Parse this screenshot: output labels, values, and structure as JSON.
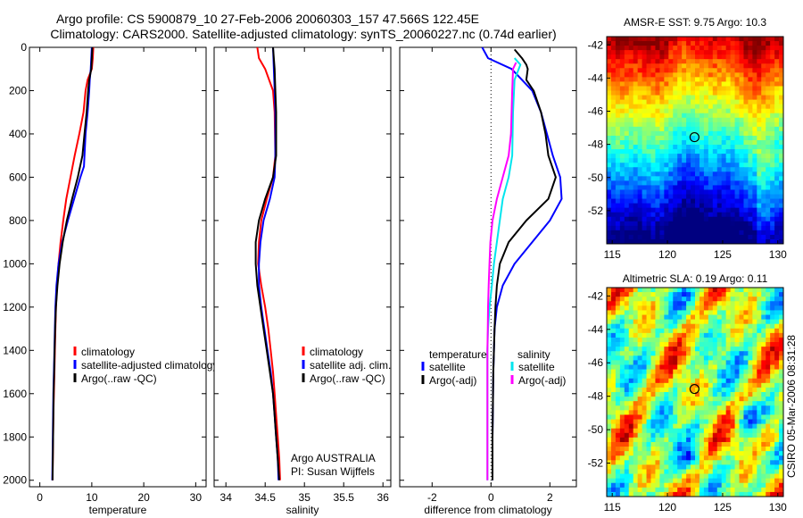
{
  "header": {
    "line1": "Argo profile: CS 5900879_10 27-Feb-2006 20060303_157 47.566S 122.45E",
    "line2": "Climatology: CARS2000. Satellite-adjusted climatology: synTS_20060227.nc (0.74d earlier)"
  },
  "side_stamp": "CSIRO 05-Mar-2006 08:31:28",
  "colors": {
    "red": "#ff0000",
    "blue": "#0000ff",
    "black": "#000000",
    "cyan": "#00e5ee",
    "magenta": "#ff00ff"
  },
  "chart_data": [
    {
      "type": "line",
      "xlabel": "temperature",
      "ylim": [
        2030,
        0
      ],
      "xlim": [
        -2,
        32
      ],
      "xticks": [
        0,
        10,
        20,
        30
      ],
      "yticks": [
        0,
        200,
        400,
        600,
        800,
        1000,
        1200,
        1400,
        1600,
        1800,
        2000
      ],
      "legend": [
        "climatology",
        "satellite-adjusted climatology",
        "Argo(..raw -QC)"
      ],
      "legend_position": "lower-middle",
      "series": [
        {
          "name": "climatology",
          "color": "#ff0000",
          "points": [
            [
              10.3,
              0
            ],
            [
              10.2,
              50
            ],
            [
              10.0,
              100
            ],
            [
              9.2,
              150
            ],
            [
              8.8,
              200
            ],
            [
              8.4,
              300
            ],
            [
              7.6,
              400
            ],
            [
              6.7,
              500
            ],
            [
              5.9,
              600
            ],
            [
              5.1,
              700
            ],
            [
              4.5,
              800
            ],
            [
              4.0,
              900
            ],
            [
              3.6,
              1000
            ],
            [
              3.3,
              1100
            ],
            [
              3.1,
              1200
            ],
            [
              3.0,
              1300
            ],
            [
              2.9,
              1400
            ],
            [
              2.8,
              1500
            ],
            [
              2.7,
              1600
            ],
            [
              2.6,
              1700
            ],
            [
              2.55,
              1800
            ],
            [
              2.5,
              1900
            ],
            [
              2.45,
              2000
            ]
          ]
        },
        {
          "name": "satellite-adjusted climatology",
          "color": "#0000ff",
          "points": [
            [
              10.0,
              0
            ],
            [
              9.9,
              50
            ],
            [
              9.8,
              100
            ],
            [
              9.6,
              150
            ],
            [
              9.5,
              200
            ],
            [
              9.2,
              300
            ],
            [
              8.8,
              400
            ],
            [
              8.6,
              500
            ],
            [
              8.5,
              550
            ],
            [
              7.8,
              600
            ],
            [
              6.6,
              700
            ],
            [
              5.4,
              800
            ],
            [
              4.3,
              900
            ],
            [
              3.6,
              1000
            ],
            [
              3.2,
              1100
            ],
            [
              3.0,
              1200
            ],
            [
              2.9,
              1300
            ],
            [
              2.8,
              1400
            ],
            [
              2.7,
              1500
            ],
            [
              2.6,
              1600
            ],
            [
              2.55,
              1700
            ],
            [
              2.5,
              1800
            ],
            [
              2.45,
              1900
            ],
            [
              2.4,
              2000
            ]
          ]
        },
        {
          "name": "Argo(..raw -QC)",
          "color": "#000000",
          "points": [
            [
              10.1,
              0
            ],
            [
              10.0,
              50
            ],
            [
              9.9,
              100
            ],
            [
              9.5,
              150
            ],
            [
              9.3,
              200
            ],
            [
              9.0,
              300
            ],
            [
              8.6,
              400
            ],
            [
              8.2,
              500
            ],
            [
              7.3,
              600
            ],
            [
              6.2,
              700
            ],
            [
              5.2,
              800
            ],
            [
              4.4,
              900
            ],
            [
              3.8,
              1000
            ],
            [
              3.4,
              1100
            ],
            [
              3.1,
              1200
            ],
            [
              2.95,
              1300
            ],
            [
              2.85,
              1400
            ],
            [
              2.75,
              1500
            ],
            [
              2.65,
              1600
            ],
            [
              2.6,
              1700
            ],
            [
              2.55,
              1800
            ],
            [
              2.5,
              1900
            ],
            [
              2.45,
              2000
            ]
          ]
        }
      ]
    },
    {
      "type": "line",
      "xlabel": "salinity",
      "ylim": [
        2030,
        0
      ],
      "xlim": [
        33.85,
        36.1
      ],
      "xticks": [
        34,
        34.5,
        35,
        35.5,
        36
      ],
      "yticks": [
        0,
        200,
        400,
        600,
        800,
        1000,
        1200,
        1400,
        1600,
        1800,
        2000
      ],
      "legend": [
        "climatology",
        "satellite adj. clim.",
        "Argo(..raw -QC)"
      ],
      "legend_position": "lower-middle",
      "annotation": [
        "Argo AUSTRALIA",
        "PI: Susan Wijffels"
      ],
      "series": [
        {
          "name": "climatology",
          "color": "#ff0000",
          "points": [
            [
              34.4,
              0
            ],
            [
              34.42,
              50
            ],
            [
              34.5,
              100
            ],
            [
              34.6,
              200
            ],
            [
              34.62,
              300
            ],
            [
              34.63,
              500
            ],
            [
              34.6,
              600
            ],
            [
              34.52,
              700
            ],
            [
              34.45,
              800
            ],
            [
              34.42,
              900
            ],
            [
              34.41,
              1000
            ],
            [
              34.45,
              1100
            ],
            [
              34.5,
              1200
            ],
            [
              34.54,
              1300
            ],
            [
              34.57,
              1400
            ],
            [
              34.6,
              1500
            ],
            [
              34.62,
              1600
            ],
            [
              34.64,
              1700
            ],
            [
              34.66,
              1800
            ],
            [
              34.68,
              1900
            ],
            [
              34.69,
              2000
            ]
          ]
        },
        {
          "name": "satellite adj. clim.",
          "color": "#0000ff",
          "points": [
            [
              34.6,
              0
            ],
            [
              34.61,
              100
            ],
            [
              34.62,
              200
            ],
            [
              34.63,
              300
            ],
            [
              34.63,
              500
            ],
            [
              34.62,
              600
            ],
            [
              34.56,
              700
            ],
            [
              34.48,
              800
            ],
            [
              34.44,
              900
            ],
            [
              34.42,
              1000
            ],
            [
              34.42,
              1100
            ],
            [
              34.45,
              1200
            ],
            [
              34.49,
              1300
            ],
            [
              34.53,
              1400
            ],
            [
              34.57,
              1500
            ],
            [
              34.6,
              1600
            ],
            [
              34.62,
              1700
            ],
            [
              34.64,
              1800
            ],
            [
              34.66,
              1900
            ],
            [
              34.67,
              2000
            ]
          ]
        },
        {
          "name": "Argo(..raw -QC)",
          "color": "#000000",
          "points": [
            [
              34.6,
              0
            ],
            [
              34.62,
              100
            ],
            [
              34.63,
              200
            ],
            [
              34.64,
              300
            ],
            [
              34.64,
              500
            ],
            [
              34.6,
              600
            ],
            [
              34.5,
              700
            ],
            [
              34.42,
              800
            ],
            [
              34.38,
              900
            ],
            [
              34.38,
              1000
            ],
            [
              34.4,
              1100
            ],
            [
              34.44,
              1200
            ],
            [
              34.48,
              1300
            ],
            [
              34.52,
              1400
            ],
            [
              34.56,
              1500
            ],
            [
              34.6,
              1600
            ],
            [
              34.62,
              1700
            ],
            [
              34.64,
              1800
            ],
            [
              34.66,
              1900
            ],
            [
              34.68,
              2000
            ]
          ]
        }
      ]
    },
    {
      "type": "line",
      "xlabel": "difference from climatology",
      "ylim": [
        2030,
        0
      ],
      "xlim": [
        -3.1,
        2.9
      ],
      "xticks": [
        -2,
        0,
        2
      ],
      "yticks": [
        0,
        200,
        400,
        600,
        800,
        1000,
        1200,
        1400,
        1600,
        1800,
        2000
      ],
      "zero_line": "dotted",
      "legend": [
        "temperature",
        "satellite",
        "Argo(-adj)",
        "salinity",
        "satellite",
        "Argo(-adj)"
      ],
      "legend_position": "lower-middle",
      "series": [
        {
          "name": "satellite",
          "group": "temperature",
          "color": "#0000ff",
          "points": [
            [
              -0.3,
              0
            ],
            [
              -0.1,
              50
            ],
            [
              0.7,
              100
            ],
            [
              1.4,
              200
            ],
            [
              1.7,
              300
            ],
            [
              1.9,
              400
            ],
            [
              2.1,
              500
            ],
            [
              2.35,
              600
            ],
            [
              2.4,
              700
            ],
            [
              2.0,
              800
            ],
            [
              1.4,
              900
            ],
            [
              0.8,
              1000
            ],
            [
              0.4,
              1100
            ],
            [
              0.2,
              1200
            ],
            [
              0.12,
              1300
            ],
            [
              0.1,
              1400
            ],
            [
              0.08,
              1500
            ],
            [
              0.07,
              1600
            ],
            [
              0.06,
              1700
            ],
            [
              0.05,
              1800
            ],
            [
              0.05,
              1900
            ],
            [
              0.05,
              2000
            ]
          ]
        },
        {
          "name": "Argo(-adj)",
          "group": "temperature",
          "color": "#000000",
          "points": [
            [
              0.8,
              10
            ],
            [
              1.05,
              50
            ],
            [
              1.2,
              80
            ],
            [
              1.25,
              100
            ],
            [
              1.2,
              150
            ],
            [
              1.45,
              200
            ],
            [
              1.7,
              300
            ],
            [
              1.85,
              400
            ],
            [
              1.95,
              500
            ],
            [
              2.2,
              600
            ],
            [
              1.95,
              700
            ],
            [
              1.2,
              800
            ],
            [
              0.6,
              900
            ],
            [
              0.3,
              1000
            ],
            [
              0.2,
              1100
            ],
            [
              0.15,
              1200
            ],
            [
              0.12,
              1300
            ],
            [
              0.1,
              1400
            ],
            [
              0.08,
              1500
            ],
            [
              0.07,
              1600
            ],
            [
              0.06,
              1700
            ],
            [
              0.05,
              1800
            ],
            [
              0.05,
              1900
            ],
            [
              0.05,
              2000
            ]
          ]
        },
        {
          "name": "satellite",
          "group": "salinity",
          "color": "#00e5ee",
          "points": [
            [
              0.8,
              50
            ],
            [
              1.0,
              80
            ],
            [
              0.8,
              150
            ],
            [
              0.75,
              300
            ],
            [
              0.72,
              500
            ],
            [
              0.6,
              600
            ],
            [
              0.4,
              700
            ],
            [
              0.3,
              800
            ],
            [
              0.2,
              900
            ],
            [
              0.1,
              1000
            ],
            [
              0.03,
              1100
            ],
            [
              -0.05,
              1200
            ],
            [
              -0.1,
              1300
            ],
            [
              -0.12,
              1400
            ],
            [
              -0.12,
              1500
            ],
            [
              -0.12,
              1600
            ],
            [
              -0.12,
              1700
            ],
            [
              -0.12,
              1800
            ],
            [
              -0.12,
              1900
            ],
            [
              -0.12,
              2000
            ]
          ]
        },
        {
          "name": "Argo(-adj)",
          "group": "salinity",
          "color": "#ff00ff",
          "points": [
            [
              0.85,
              70
            ],
            [
              0.75,
              100
            ],
            [
              0.72,
              200
            ],
            [
              0.7,
              300
            ],
            [
              0.68,
              400
            ],
            [
              0.6,
              500
            ],
            [
              0.4,
              600
            ],
            [
              0.2,
              700
            ],
            [
              0.05,
              800
            ],
            [
              -0.02,
              900
            ],
            [
              -0.05,
              1000
            ],
            [
              -0.08,
              1100
            ],
            [
              -0.1,
              1200
            ],
            [
              -0.11,
              1300
            ],
            [
              -0.12,
              1400
            ],
            [
              -0.12,
              1500
            ],
            [
              -0.12,
              1600
            ],
            [
              -0.12,
              1700
            ],
            [
              -0.12,
              1800
            ],
            [
              -0.12,
              1900
            ],
            [
              -0.12,
              2000
            ]
          ]
        }
      ]
    },
    {
      "type": "heatmap",
      "title": "AMSR-E SST: 9.75 Argo: 10.3",
      "xlim": [
        114.5,
        130.5
      ],
      "ylim": [
        -54,
        -41.5
      ],
      "xticks": [
        115,
        120,
        125,
        130
      ],
      "yticks": [
        -42,
        -44,
        -46,
        -48,
        -50,
        -52
      ],
      "marker": {
        "lon": 122.45,
        "lat": -47.566
      }
    },
    {
      "type": "heatmap",
      "title": "Altimetric SLA: 0.19 Argo: 0.11",
      "xlim": [
        114.5,
        130.5
      ],
      "ylim": [
        -54,
        -41.5
      ],
      "xticks": [
        115,
        120,
        125,
        130
      ],
      "yticks": [
        -42,
        -44,
        -46,
        -48,
        -50,
        -52
      ],
      "marker": {
        "lon": 122.45,
        "lat": -47.566
      }
    }
  ]
}
